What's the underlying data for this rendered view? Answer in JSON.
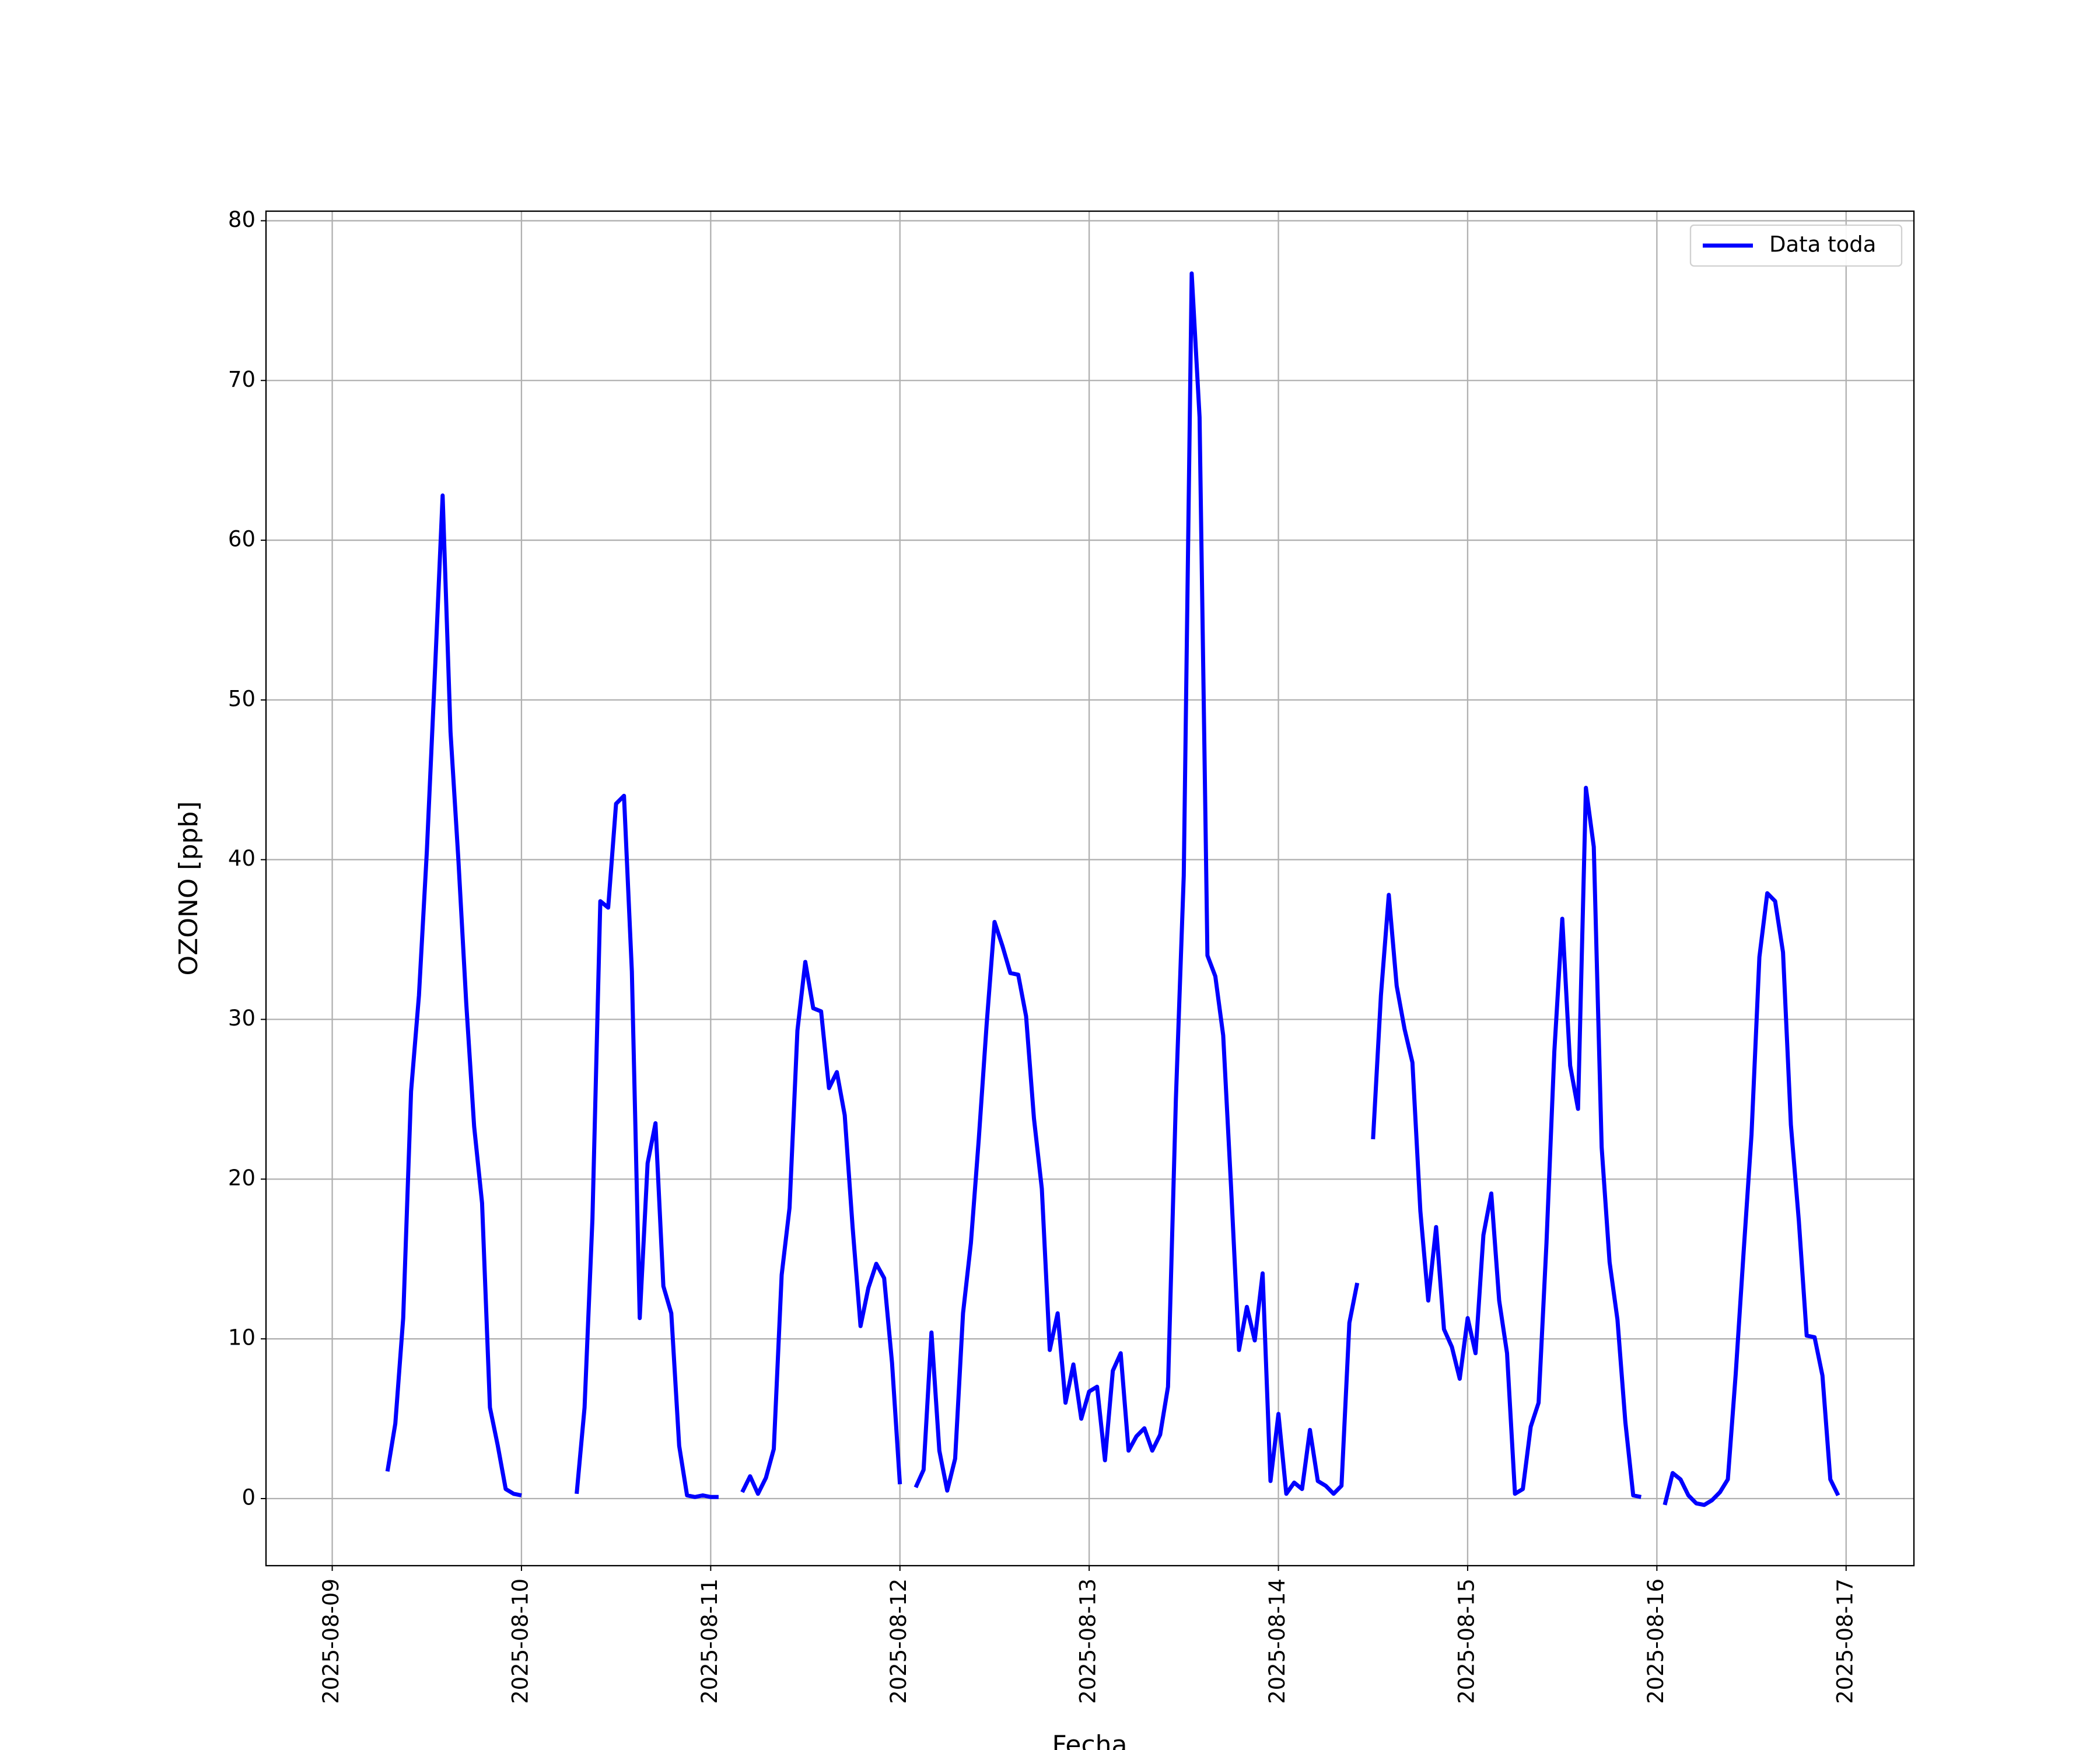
{
  "chart_data": {
    "type": "line",
    "xlabel": "Fecha",
    "ylabel": "OZONO [ppb]",
    "x": [
      "2025-08-09 07:00",
      "2025-08-09 08:00",
      "2025-08-09 09:00",
      "2025-08-09 10:00",
      "2025-08-09 11:00",
      "2025-08-09 12:00",
      "2025-08-09 13:00",
      "2025-08-09 14:00",
      "2025-08-09 15:00",
      "2025-08-09 16:00",
      "2025-08-09 17:00",
      "2025-08-09 18:00",
      "2025-08-09 19:00",
      "2025-08-09 20:00",
      "2025-08-09 21:00",
      "2025-08-09 22:00",
      "2025-08-09 23:00",
      "2025-08-10 00:00",
      "2025-08-10 01:00",
      "2025-08-10 02:00",
      "2025-08-10 03:00",
      "2025-08-10 04:00",
      "2025-08-10 05:00",
      "2025-08-10 06:00",
      "2025-08-10 07:00",
      "2025-08-10 08:00",
      "2025-08-10 09:00",
      "2025-08-10 10:00",
      "2025-08-10 11:00",
      "2025-08-10 12:00",
      "2025-08-10 13:00",
      "2025-08-10 14:00",
      "2025-08-10 15:00",
      "2025-08-10 16:00",
      "2025-08-10 17:00",
      "2025-08-10 18:00",
      "2025-08-10 19:00",
      "2025-08-10 20:00",
      "2025-08-10 21:00",
      "2025-08-10 22:00",
      "2025-08-10 23:00",
      "2025-08-11 00:00",
      "2025-08-11 01:00",
      "2025-08-11 02:00",
      "2025-08-11 03:00",
      "2025-08-11 04:00",
      "2025-08-11 05:00",
      "2025-08-11 06:00",
      "2025-08-11 07:00",
      "2025-08-11 08:00",
      "2025-08-11 09:00",
      "2025-08-11 10:00",
      "2025-08-11 11:00",
      "2025-08-11 12:00",
      "2025-08-11 13:00",
      "2025-08-11 14:00",
      "2025-08-11 15:00",
      "2025-08-11 16:00",
      "2025-08-11 17:00",
      "2025-08-11 18:00",
      "2025-08-11 19:00",
      "2025-08-11 20:00",
      "2025-08-11 21:00",
      "2025-08-11 22:00",
      "2025-08-11 23:00",
      "2025-08-12 00:00",
      "2025-08-12 01:00",
      "2025-08-12 02:00",
      "2025-08-12 03:00",
      "2025-08-12 04:00",
      "2025-08-12 05:00",
      "2025-08-12 06:00",
      "2025-08-12 07:00",
      "2025-08-12 08:00",
      "2025-08-12 09:00",
      "2025-08-12 10:00",
      "2025-08-12 11:00",
      "2025-08-12 12:00",
      "2025-08-12 13:00",
      "2025-08-12 14:00",
      "2025-08-12 15:00",
      "2025-08-12 16:00",
      "2025-08-12 17:00",
      "2025-08-12 18:00",
      "2025-08-12 19:00",
      "2025-08-12 20:00",
      "2025-08-12 21:00",
      "2025-08-12 22:00",
      "2025-08-12 23:00",
      "2025-08-13 00:00",
      "2025-08-13 01:00",
      "2025-08-13 02:00",
      "2025-08-13 03:00",
      "2025-08-13 04:00",
      "2025-08-13 05:00",
      "2025-08-13 06:00",
      "2025-08-13 07:00",
      "2025-08-13 08:00",
      "2025-08-13 09:00",
      "2025-08-13 10:00",
      "2025-08-13 11:00",
      "2025-08-13 12:00",
      "2025-08-13 13:00",
      "2025-08-13 14:00",
      "2025-08-13 15:00",
      "2025-08-13 16:00",
      "2025-08-13 17:00",
      "2025-08-13 18:00",
      "2025-08-13 19:00",
      "2025-08-13 20:00",
      "2025-08-13 21:00",
      "2025-08-13 22:00",
      "2025-08-13 23:00",
      "2025-08-14 00:00",
      "2025-08-14 01:00",
      "2025-08-14 02:00",
      "2025-08-14 03:00",
      "2025-08-14 04:00",
      "2025-08-14 05:00",
      "2025-08-14 06:00",
      "2025-08-14 07:00",
      "2025-08-14 08:00",
      "2025-08-14 09:00",
      "2025-08-14 10:00",
      "2025-08-14 11:00",
      "2025-08-14 12:00",
      "2025-08-14 13:00",
      "2025-08-14 14:00",
      "2025-08-14 15:00",
      "2025-08-14 16:00",
      "2025-08-14 17:00",
      "2025-08-14 18:00",
      "2025-08-14 19:00",
      "2025-08-14 20:00",
      "2025-08-14 21:00",
      "2025-08-14 22:00",
      "2025-08-14 23:00",
      "2025-08-15 00:00",
      "2025-08-15 01:00",
      "2025-08-15 02:00",
      "2025-08-15 03:00",
      "2025-08-15 04:00",
      "2025-08-15 05:00",
      "2025-08-15 06:00",
      "2025-08-15 07:00",
      "2025-08-15 08:00",
      "2025-08-15 09:00",
      "2025-08-15 10:00",
      "2025-08-15 11:00",
      "2025-08-15 12:00",
      "2025-08-15 13:00",
      "2025-08-15 14:00",
      "2025-08-15 15:00",
      "2025-08-15 16:00",
      "2025-08-15 17:00",
      "2025-08-15 18:00",
      "2025-08-15 19:00",
      "2025-08-15 20:00",
      "2025-08-15 21:00",
      "2025-08-15 22:00",
      "2025-08-15 23:00",
      "2025-08-16 00:00",
      "2025-08-16 01:00",
      "2025-08-16 02:00",
      "2025-08-16 03:00",
      "2025-08-16 04:00",
      "2025-08-16 05:00",
      "2025-08-16 06:00",
      "2025-08-16 07:00",
      "2025-08-16 08:00",
      "2025-08-16 09:00",
      "2025-08-16 10:00",
      "2025-08-16 11:00",
      "2025-08-16 12:00",
      "2025-08-16 13:00",
      "2025-08-16 14:00",
      "2025-08-16 15:00",
      "2025-08-16 16:00",
      "2025-08-16 17:00",
      "2025-08-16 18:00",
      "2025-08-16 19:00",
      "2025-08-16 20:00",
      "2025-08-16 21:00",
      "2025-08-16 22:00",
      "2025-08-16 23:00"
    ],
    "series": [
      {
        "name": "Data toda",
        "color": "#0000ff",
        "values": [
          1.7,
          4.7,
          11.3,
          25.5,
          31.5,
          40.5,
          51.5,
          62.8,
          48,
          40,
          31,
          23.3,
          18.5,
          5.7,
          3.3,
          0.6,
          0.3,
          0.2,
          null,
          null,
          null,
          null,
          null,
          null,
          0.3,
          5.7,
          17.5,
          37.4,
          37,
          43.5,
          44,
          33,
          11.3,
          21,
          23.5,
          13.3,
          11.6,
          3.3,
          0.2,
          0.1,
          0.2,
          0.1,
          0.1,
          null,
          null,
          0.4,
          1.4,
          0.3,
          1.3,
          3.1,
          14,
          18.2,
          29.3,
          33.6,
          30.7,
          30.5,
          25.7,
          26.7,
          24,
          17,
          10.8,
          13.2,
          14.7,
          13.8,
          8.5,
          0.9,
          null,
          0.7,
          1.8,
          10.4,
          3,
          0.5,
          2.5,
          11.6,
          16,
          22.5,
          29.7,
          36.1,
          34.6,
          32.9,
          32.8,
          30.2,
          23.8,
          19.4,
          9.3,
          11.6,
          6,
          8.4,
          5,
          6.7,
          7,
          2.4,
          8,
          9.1,
          3,
          3.9,
          4.4,
          3,
          4,
          7,
          25,
          39,
          76.7,
          67.7,
          34,
          32.7,
          29,
          19.5,
          9.3,
          12,
          9.9,
          14.1,
          1.1,
          5.3,
          0.3,
          1,
          0.6,
          4.3,
          1.1,
          0.8,
          0.3,
          0.8,
          11,
          13.5,
          null,
          22.5,
          31.5,
          37.8,
          32.1,
          29.4,
          27.3,
          18,
          12.4,
          17,
          10.6,
          9.5,
          7.5,
          11.3,
          9.1,
          16.5,
          19.1,
          12.4,
          9.1,
          0.3,
          0.6,
          4.5,
          6,
          16,
          28,
          36.3,
          27.1,
          24.4,
          44.5,
          40.8,
          22,
          14.8,
          11.2,
          4.8,
          0.2,
          0.1,
          null,
          null,
          -0.4,
          1.6,
          1.2,
          0.2,
          -0.3,
          -0.4,
          -0.1,
          0.4,
          1.2,
          7.8,
          15.4,
          22.8,
          33.9,
          37.9,
          37.4,
          34.2,
          23.4,
          17.4,
          10.2,
          10.1,
          7.7,
          1.2,
          0.2
        ]
      }
    ],
    "xlim": [
      "2025-08-08 15:36",
      "2025-08-17 08:36"
    ],
    "xticks": [
      "2025-08-09",
      "2025-08-10",
      "2025-08-11",
      "2025-08-12",
      "2025-08-13",
      "2025-08-14",
      "2025-08-15",
      "2025-08-16",
      "2025-08-17"
    ],
    "ylim": [
      -4.2,
      80.6
    ],
    "yticks": [
      0,
      10,
      20,
      30,
      40,
      50,
      60,
      70,
      80
    ],
    "grid": true,
    "legend": "upper right"
  }
}
